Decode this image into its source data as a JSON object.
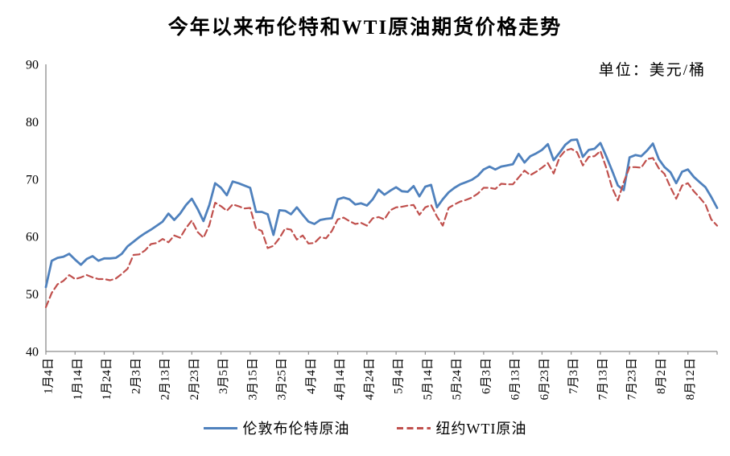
{
  "chart_data": {
    "type": "line",
    "title": "今年以来布伦特和WTI原油期货价格走势",
    "unit_label": "单位：美元/桶",
    "ylim": [
      40,
      90
    ],
    "ytick_interval": 10,
    "grid": false,
    "legend_position": "bottom",
    "axis_color": "#8c8c8c",
    "x_tick_labels": [
      "1月4日",
      "1月14日",
      "1月24日",
      "2月3日",
      "2月13日",
      "2月23日",
      "3月5日",
      "3月15日",
      "3月25日",
      "4月4日",
      "4月14日",
      "4月24日",
      "5月4日",
      "5月14日",
      "5月24日",
      "6月3日",
      "6月13日",
      "6月23日",
      "7月3日",
      "7月13日",
      "7月23日",
      "8月2日",
      "8月12日"
    ],
    "points_per_tick": 5,
    "series": [
      {
        "name": "伦敦布伦特原油",
        "color": "#4F81BD",
        "style": "solid",
        "values": [
          51.2,
          55.8,
          56.3,
          56.5,
          57.0,
          56.0,
          55.1,
          56.1,
          56.6,
          55.8,
          56.2,
          56.2,
          56.3,
          57.0,
          58.3,
          59.1,
          59.9,
          60.6,
          61.2,
          61.9,
          62.6,
          64.0,
          62.9,
          64.0,
          65.5,
          66.6,
          64.8,
          62.7,
          65.5,
          69.3,
          68.5,
          67.2,
          69.6,
          69.3,
          68.9,
          68.5,
          64.3,
          64.3,
          63.9,
          60.3,
          64.6,
          64.5,
          63.9,
          65.1,
          63.8,
          62.6,
          62.2,
          62.9,
          63.1,
          63.2,
          66.5,
          66.8,
          66.5,
          65.6,
          65.8,
          65.4,
          66.5,
          68.2,
          67.3,
          68.0,
          68.6,
          67.9,
          67.8,
          68.8,
          67.0,
          68.7,
          69.0,
          65.1,
          66.5,
          67.7,
          68.5,
          69.1,
          69.5,
          69.9,
          70.6,
          71.7,
          72.2,
          71.7,
          72.2,
          72.4,
          72.6,
          74.4,
          72.9,
          74.0,
          74.5,
          75.1,
          76.1,
          73.3,
          74.6,
          76.0,
          76.8,
          76.9,
          73.9,
          75.1,
          75.3,
          76.3,
          74.0,
          71.5,
          68.9,
          68.1,
          73.8,
          74.2,
          74.0,
          75.0,
          76.2,
          73.5,
          72.1,
          71.2,
          69.3,
          71.3,
          71.7,
          70.4,
          69.5,
          68.6,
          66.9,
          65.0
        ]
      },
      {
        "name": "纽约WTI原油",
        "color": "#C0504D",
        "style": "dashed",
        "values": [
          47.7,
          50.2,
          51.7,
          52.3,
          53.3,
          52.6,
          52.9,
          53.3,
          52.9,
          52.6,
          52.6,
          52.4,
          52.7,
          53.5,
          54.4,
          56.8,
          56.9,
          57.6,
          58.7,
          58.9,
          59.6,
          59.0,
          60.2,
          59.8,
          61.5,
          62.8,
          60.8,
          59.8,
          62.0,
          65.9,
          65.3,
          64.5,
          65.6,
          65.3,
          64.9,
          65.0,
          61.4,
          61.0,
          58.0,
          58.4,
          59.7,
          61.4,
          61.2,
          59.5,
          60.2,
          58.8,
          58.9,
          59.9,
          59.7,
          61.0,
          63.0,
          63.3,
          62.7,
          62.2,
          62.4,
          61.9,
          63.2,
          63.4,
          63.0,
          64.6,
          65.1,
          65.2,
          65.4,
          65.5,
          63.8,
          65.1,
          65.5,
          63.5,
          61.9,
          65.0,
          65.6,
          66.1,
          66.4,
          66.8,
          67.5,
          68.5,
          68.5,
          68.3,
          69.2,
          69.1,
          69.1,
          70.3,
          71.5,
          70.7,
          71.3,
          72.0,
          72.8,
          71.0,
          73.8,
          75.0,
          75.3,
          74.7,
          72.4,
          73.9,
          74.0,
          74.9,
          72.0,
          68.5,
          66.3,
          69.5,
          72.1,
          72.1,
          72.0,
          73.5,
          73.7,
          71.9,
          70.9,
          68.6,
          66.6,
          68.9,
          69.3,
          67.9,
          66.8,
          65.6,
          63.0,
          61.9
        ]
      }
    ]
  }
}
